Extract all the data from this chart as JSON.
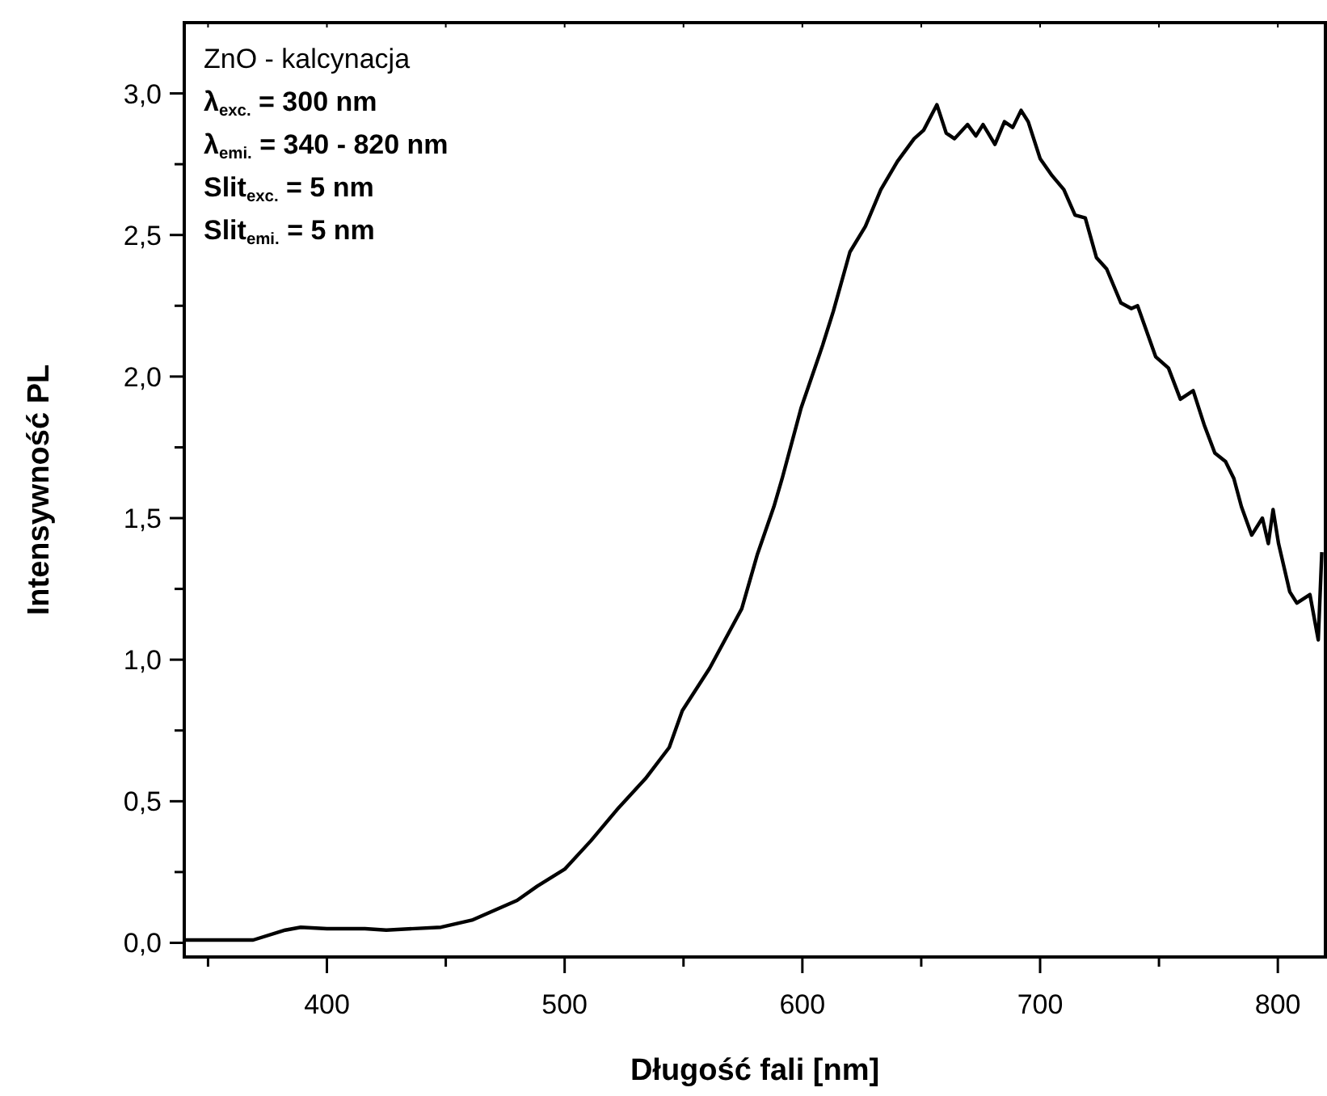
{
  "chart_data": {
    "type": "line",
    "xlabel": "Długość fali [nm]",
    "ylabel": "Intensywność PL",
    "annotations": [
      "ZnO - kalcynacja",
      "λ$_{exc.}$ = 300 nm",
      "λ$_{emi.}$ = 340 - 820 nm",
      "Slit$_{exc.}$ = 5 nm",
      "Slit$_{emi.}$ = 5 nm"
    ],
    "xlim": [
      340,
      820
    ],
    "ylim": [
      -0.05,
      3.25
    ],
    "xticks": [
      {
        "value": 350,
        "label": null
      },
      400,
      {
        "value": 450,
        "label": null
      },
      500,
      {
        "value": 550,
        "label": null
      },
      600,
      {
        "value": 650,
        "label": null
      },
      700,
      {
        "value": 750,
        "label": null
      },
      800
    ],
    "yticks": [
      {
        "value": 0,
        "label": "0,0"
      },
      {
        "value": 0.25,
        "label": null
      },
      {
        "value": 0.5,
        "label": "0,5"
      },
      {
        "value": 0.75,
        "label": null
      },
      {
        "value": 1,
        "label": "1,0"
      },
      {
        "value": 1.25,
        "label": null
      },
      {
        "value": 1.5,
        "label": "1,5"
      },
      {
        "value": 1.75,
        "label": null
      },
      {
        "value": 2,
        "label": "2,0"
      },
      {
        "value": 2.25,
        "label": null
      },
      {
        "value": 2.5,
        "label": "2,5"
      },
      {
        "value": 2.75,
        "label": null
      },
      {
        "value": 3,
        "label": "3,0"
      }
    ],
    "grid": false,
    "marker": "none",
    "line_style": "solid",
    "series": [
      {
        "color": "#000000",
        "x": [
          340,
          369,
          382.5,
          389,
          400,
          416,
          425,
          448,
          461,
          480,
          488.5,
          500,
          511,
          522,
          534,
          544,
          549.5,
          561,
          574.5,
          581,
          588,
          591.5,
          599.5,
          608.5,
          613,
          620,
          626.5,
          633,
          640,
          647,
          651,
          656.6,
          660.5,
          664,
          669.5,
          673,
          676,
          681,
          685,
          688.5,
          692,
          695,
          700,
          705,
          710,
          714.7,
          719,
          723.7,
          728,
          734,
          738.4,
          741,
          748.6,
          754,
          759,
          764.4,
          769,
          773.5,
          778,
          781.5,
          784.7,
          789,
          793.5,
          796,
          798,
          800.3,
          805,
          808,
          813.5,
          817,
          818.5
        ],
        "values": [
          0.01,
          0.01,
          0.045,
          0.055,
          0.05,
          0.05,
          0.045,
          0.055,
          0.08,
          0.15,
          0.2,
          0.26,
          0.36,
          0.47,
          0.58,
          0.69,
          0.82,
          0.97,
          1.18,
          1.37,
          1.54,
          1.64,
          1.89,
          2.11,
          2.23,
          2.44,
          2.53,
          2.66,
          2.76,
          2.84,
          2.87,
          2.96,
          2.86,
          2.84,
          2.89,
          2.85,
          2.89,
          2.82,
          2.9,
          2.88,
          2.94,
          2.9,
          2.77,
          2.71,
          2.66,
          2.57,
          2.56,
          2.42,
          2.38,
          2.26,
          2.24,
          2.25,
          2.07,
          2.03,
          1.92,
          1.95,
          1.83,
          1.73,
          1.7,
          1.64,
          1.54,
          1.44,
          1.5,
          1.41,
          1.53,
          1.41,
          1.24,
          1.2,
          1.23,
          1.07,
          1.38
        ]
      }
    ]
  }
}
